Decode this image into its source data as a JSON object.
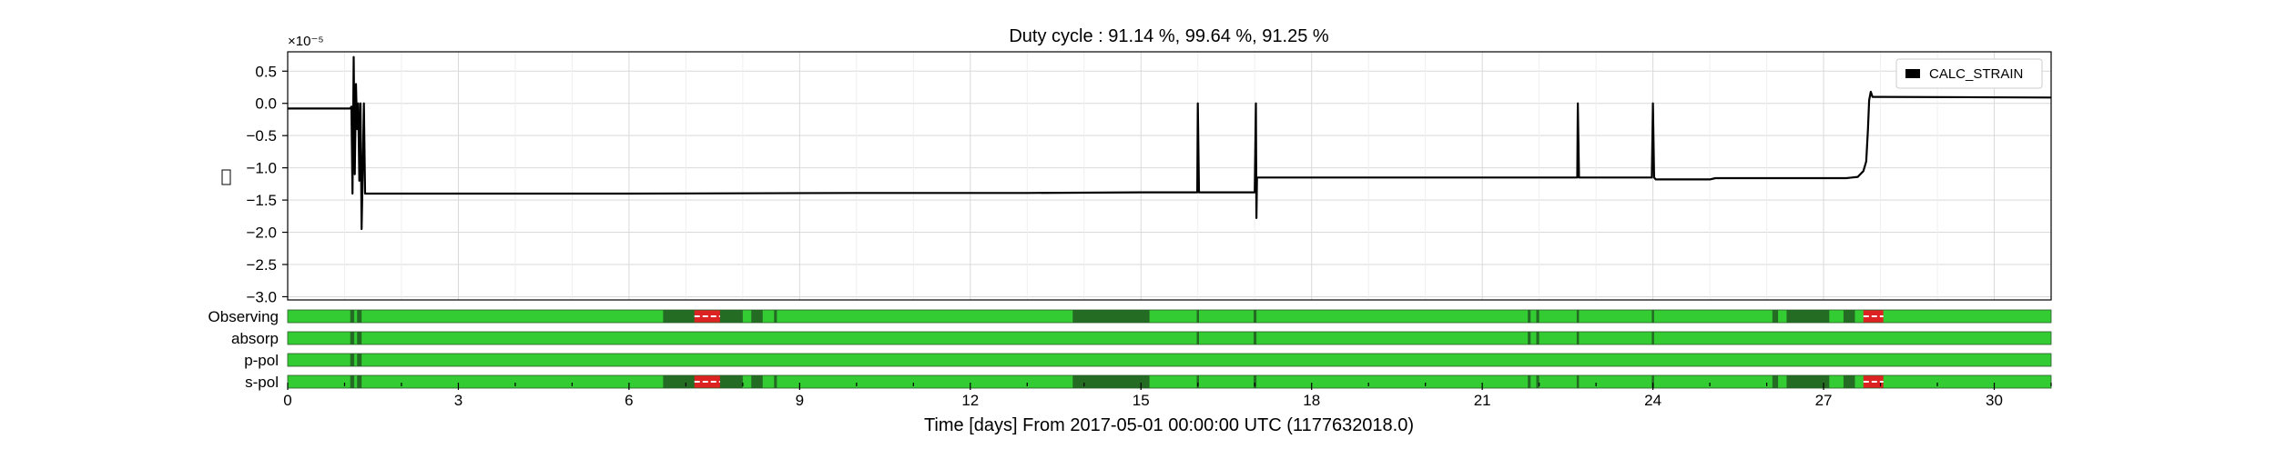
{
  "chart_data": {
    "type": "line",
    "title": "Duty cycle : 91.14 %, 99.64 %, 91.25 %",
    "xlabel": "Time [days] From 2017-05-01 00:00:00 UTC (1177632018.0)",
    "ylabel": "",
    "y_offset_label": "×10⁻⁵",
    "xlim": [
      0,
      31
    ],
    "ylim": [
      -3.05,
      0.8
    ],
    "x_ticks": [
      0,
      3,
      6,
      9,
      12,
      15,
      18,
      21,
      24,
      27,
      30
    ],
    "x_tick_labels": [
      "0",
      "3",
      "6",
      "9",
      "12",
      "15",
      "18",
      "21",
      "24",
      "27",
      "30"
    ],
    "y_ticks": [
      0.5,
      0.0,
      -0.5,
      -1.0,
      -1.5,
      -2.0,
      -2.5,
      -3.0
    ],
    "y_tick_labels": [
      "0.5",
      "0.0",
      "−0.5",
      "−1.0",
      "−1.5",
      "−2.0",
      "−2.5",
      "−3.0"
    ],
    "grid": true,
    "legend_position": "top-right",
    "series": [
      {
        "name": "CALC_STRAIN",
        "color": "#000000",
        "points": [
          [
            0,
            -0.08
          ],
          [
            1.1,
            -0.08
          ],
          [
            1.12,
            -0.05
          ],
          [
            1.14,
            -1.4
          ],
          [
            1.16,
            0.72
          ],
          [
            1.18,
            -1.1
          ],
          [
            1.2,
            0.3
          ],
          [
            1.22,
            -0.4
          ],
          [
            1.24,
            0.0
          ],
          [
            1.26,
            -1.2
          ],
          [
            1.28,
            0.0
          ],
          [
            1.3,
            -1.95
          ],
          [
            1.32,
            -1.0
          ],
          [
            1.34,
            0.0
          ],
          [
            1.36,
            -1.4
          ],
          [
            1.38,
            -1.4
          ],
          [
            6.0,
            -1.4
          ],
          [
            10.0,
            -1.39
          ],
          [
            13.0,
            -1.39
          ],
          [
            15.0,
            -1.38
          ],
          [
            15.99,
            -1.38
          ],
          [
            16.0,
            0.0
          ],
          [
            16.02,
            -1.38
          ],
          [
            17.0,
            -1.38
          ],
          [
            17.02,
            0.0
          ],
          [
            17.03,
            -1.78
          ],
          [
            17.04,
            -1.15
          ],
          [
            22.0,
            -1.15
          ],
          [
            22.67,
            -1.15
          ],
          [
            22.68,
            0.0
          ],
          [
            22.7,
            -1.15
          ],
          [
            23.98,
            -1.15
          ],
          [
            24.0,
            0.0
          ],
          [
            24.02,
            -1.15
          ],
          [
            24.05,
            -1.18
          ],
          [
            25.0,
            -1.18
          ],
          [
            25.1,
            -1.16
          ],
          [
            27.4,
            -1.16
          ],
          [
            27.6,
            -1.14
          ],
          [
            27.7,
            -1.05
          ],
          [
            27.75,
            -0.9
          ],
          [
            27.78,
            -0.4
          ],
          [
            27.8,
            0.05
          ],
          [
            27.83,
            0.18
          ],
          [
            27.86,
            0.1
          ],
          [
            28.0,
            0.1
          ],
          [
            31.0,
            0.09
          ]
        ]
      }
    ],
    "segment_rows": [
      {
        "label": "Observing",
        "base_color": "#33cc33",
        "off_color": "#246b24",
        "flag_color": "#dd2222",
        "off": [
          [
            1.1,
            1.17
          ],
          [
            1.22,
            1.3
          ],
          [
            6.6,
            7.2
          ],
          [
            7.55,
            8.0
          ],
          [
            8.15,
            8.35
          ],
          [
            8.55,
            8.6
          ],
          [
            13.8,
            15.15
          ],
          [
            15.98,
            16.02
          ],
          [
            16.98,
            17.03
          ],
          [
            21.8,
            21.85
          ],
          [
            21.95,
            22.0
          ],
          [
            22.66,
            22.7
          ],
          [
            23.98,
            24.02
          ],
          [
            26.1,
            26.2
          ],
          [
            26.35,
            27.1
          ],
          [
            27.35,
            27.55
          ]
        ],
        "flags": [
          [
            7.15,
            7.6
          ],
          [
            27.7,
            28.05
          ]
        ]
      },
      {
        "label": "absorp",
        "base_color": "#33cc33",
        "off_color": "#246b24",
        "flag_color": "#dd2222",
        "off": [
          [
            1.1,
            1.17
          ],
          [
            1.22,
            1.3
          ],
          [
            15.98,
            16.02
          ],
          [
            16.98,
            17.03
          ],
          [
            21.8,
            21.85
          ],
          [
            21.95,
            22.0
          ],
          [
            22.66,
            22.7
          ],
          [
            23.98,
            24.02
          ]
        ],
        "flags": []
      },
      {
        "label": "p-pol",
        "base_color": "#33cc33",
        "off_color": "#246b24",
        "flag_color": "#dd2222",
        "off": [
          [
            1.1,
            1.17
          ],
          [
            1.22,
            1.3
          ]
        ],
        "flags": []
      },
      {
        "label": "s-pol",
        "base_color": "#33cc33",
        "off_color": "#246b24",
        "flag_color": "#dd2222",
        "off": [
          [
            1.1,
            1.17
          ],
          [
            1.22,
            1.3
          ],
          [
            6.6,
            7.2
          ],
          [
            7.55,
            8.0
          ],
          [
            8.15,
            8.35
          ],
          [
            8.55,
            8.6
          ],
          [
            13.8,
            15.15
          ],
          [
            15.98,
            16.02
          ],
          [
            16.98,
            17.03
          ],
          [
            21.8,
            21.85
          ],
          [
            21.95,
            22.0
          ],
          [
            22.66,
            22.7
          ],
          [
            23.98,
            24.02
          ],
          [
            26.1,
            26.2
          ],
          [
            26.35,
            27.1
          ],
          [
            27.35,
            27.55
          ]
        ],
        "flags": [
          [
            7.15,
            7.6
          ],
          [
            27.7,
            28.05
          ]
        ]
      }
    ]
  }
}
